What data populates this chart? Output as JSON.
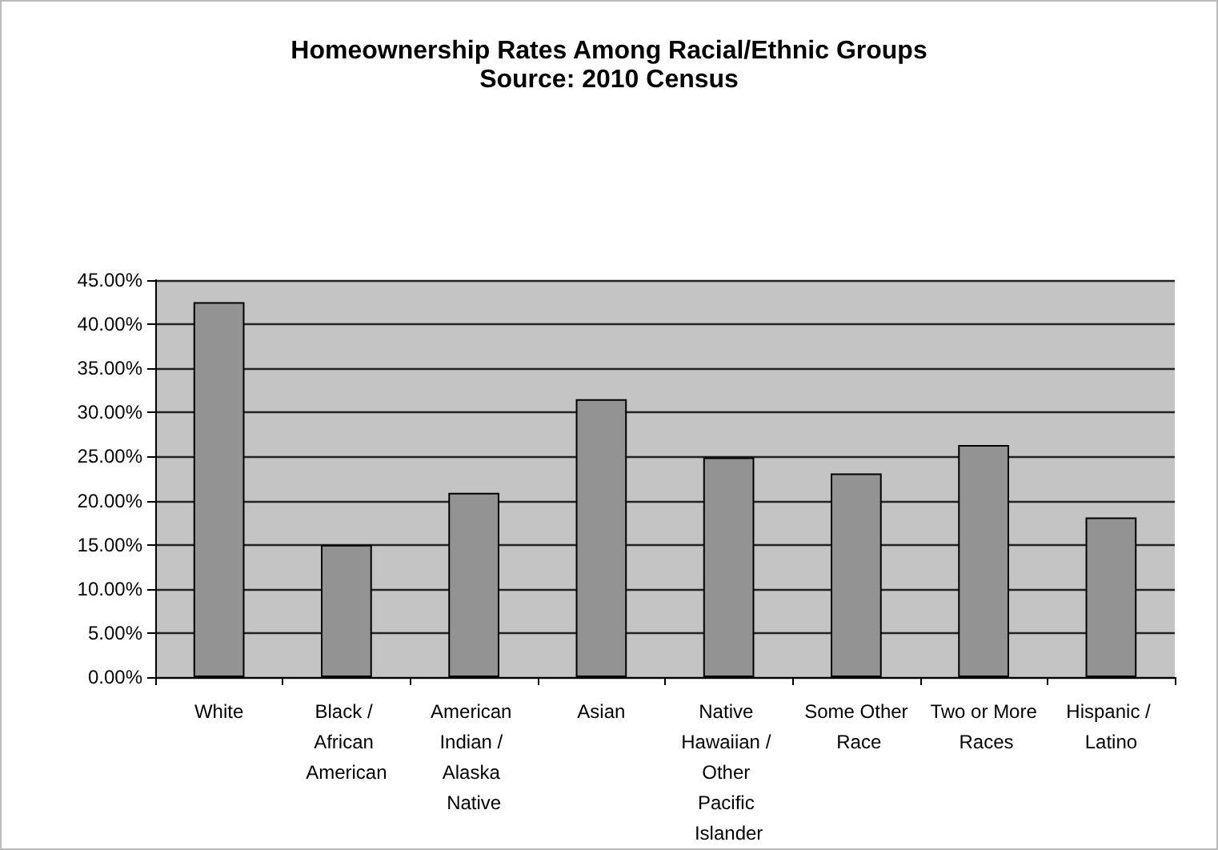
{
  "chart_data": {
    "type": "bar",
    "title": "Homeownership Rates Among Racial/Ethnic Groups",
    "subtitle": "Source: 2010 Census",
    "categories": [
      "White",
      "Black / African American",
      "American Indian / Alaska Native",
      "Asian",
      "Native Hawaiian / Other Pacific Islander",
      "Some Other Race",
      "Two or More Races",
      "Hispanic / Latino"
    ],
    "values": [
      42.5,
      15.0,
      20.9,
      31.5,
      24.9,
      23.1,
      26.3,
      18.1
    ],
    "color": "#939393",
    "ylim": [
      0,
      45
    ],
    "yticks": [
      {
        "value": 0,
        "label": "0.00%"
      },
      {
        "value": 5,
        "label": "5.00%"
      },
      {
        "value": 10,
        "label": "10.00%"
      },
      {
        "value": 15,
        "label": "15.00%"
      },
      {
        "value": 20,
        "label": "20.00%"
      },
      {
        "value": 25,
        "label": "25.00%"
      },
      {
        "value": 30,
        "label": "30.00%"
      },
      {
        "value": 35,
        "label": "35.00%"
      },
      {
        "value": 40,
        "label": "40.00%"
      },
      {
        "value": 45,
        "label": "45.00%"
      }
    ],
    "grid": "y"
  }
}
